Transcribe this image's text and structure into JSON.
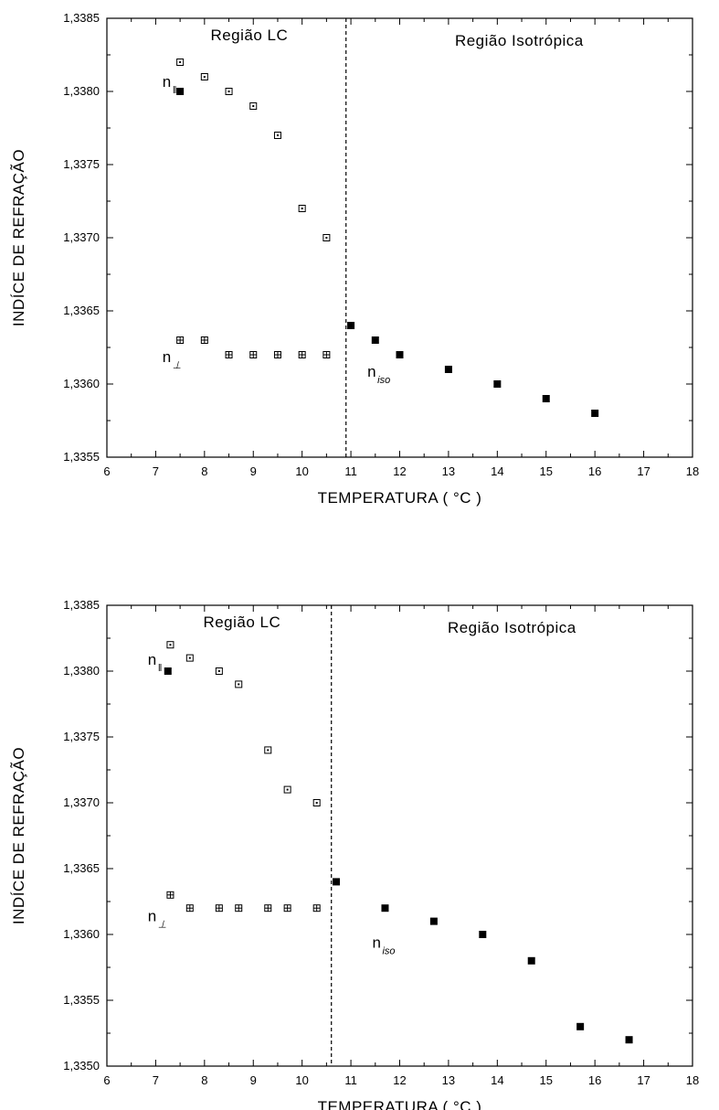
{
  "chart_data": [
    {
      "type": "scatter",
      "xlabel": "TEMPERATURA ( °C )",
      "ylabel": "INDÍCE DE REFRAÇÃO",
      "xlim": [
        6,
        18
      ],
      "ylim": [
        1.3355,
        1.3385
      ],
      "xticks": [
        "6",
        "7",
        "8",
        "9",
        "10",
        "11",
        "12",
        "13",
        "14",
        "15",
        "16",
        "17",
        "18"
      ],
      "yticks": [
        "1,3355",
        "1,3360",
        "1,3365",
        "1,3370",
        "1,3375",
        "1,3380",
        "1,3385"
      ],
      "transition_x": 10.9,
      "regions": {
        "lc": "Região LC",
        "iso": "Região Isotrópica"
      },
      "annotations": [
        {
          "text": "n",
          "sub": "‖",
          "x": 7.4,
          "y": 1.33803
        },
        {
          "text": "n",
          "sub": "⊥",
          "x": 7.4,
          "y": 1.33615
        },
        {
          "text": "n",
          "sub": "iso",
          "x": 11.6,
          "y": 1.33605
        }
      ],
      "series": [
        {
          "marker": "open-square",
          "x": [
            7.5,
            8.0,
            8.5,
            9.0,
            9.5,
            10.0,
            10.5
          ],
          "y": [
            1.3382,
            1.3381,
            1.338,
            1.3379,
            1.3377,
            1.3372,
            1.337
          ]
        },
        {
          "marker": "crossed-square",
          "x": [
            7.5,
            8.0,
            8.5,
            9.0,
            9.5,
            10.0,
            10.5
          ],
          "y": [
            1.3363,
            1.3363,
            1.3362,
            1.3362,
            1.3362,
            1.3362,
            1.3362
          ]
        },
        {
          "marker": "filled-square",
          "x": [
            7.5,
            11.0,
            11.5,
            12.0,
            13.0,
            14.0,
            15.0,
            16.0
          ],
          "y": [
            1.338,
            1.3364,
            1.3363,
            1.3362,
            1.3361,
            1.336,
            1.3359,
            1.3358
          ]
        }
      ]
    },
    {
      "type": "scatter",
      "xlabel": "TEMPERATURA ( °C )",
      "ylabel": "INDÍCE DE REFRAÇÃO",
      "xlim": [
        6,
        18
      ],
      "ylim": [
        1.335,
        1.3385
      ],
      "xticks": [
        "6",
        "7",
        "8",
        "9",
        "10",
        "11",
        "12",
        "13",
        "14",
        "15",
        "16",
        "17",
        "18"
      ],
      "yticks": [
        "1,3350",
        "1,3355",
        "1,3360",
        "1,3365",
        "1,3370",
        "1,3375",
        "1,3380",
        "1,3385"
      ],
      "transition_x": 10.6,
      "regions": {
        "lc": "Região LC",
        "iso": "Região Isotrópica"
      },
      "annotations": [
        {
          "text": "n",
          "sub": "‖",
          "x": 7.1,
          "y": 1.33805
        },
        {
          "text": "n",
          "sub": "⊥",
          "x": 7.1,
          "y": 1.3361
        },
        {
          "text": "n",
          "sub": "iso",
          "x": 11.7,
          "y": 1.3359
        }
      ],
      "series": [
        {
          "marker": "open-square",
          "x": [
            7.3,
            7.7,
            8.3,
            8.7,
            9.3,
            9.7,
            10.3
          ],
          "y": [
            1.3382,
            1.3381,
            1.338,
            1.3379,
            1.3374,
            1.3371,
            1.337
          ]
        },
        {
          "marker": "crossed-square",
          "x": [
            7.3,
            7.7,
            8.3,
            8.7,
            9.3,
            9.7,
            10.3
          ],
          "y": [
            1.3363,
            1.3362,
            1.3362,
            1.3362,
            1.3362,
            1.3362,
            1.3362
          ]
        },
        {
          "marker": "filled-square",
          "x": [
            7.25,
            10.7,
            11.7,
            12.7,
            13.7,
            14.7,
            15.7,
            16.7
          ],
          "y": [
            1.338,
            1.3364,
            1.3362,
            1.3361,
            1.336,
            1.3358,
            1.3353,
            1.3352
          ]
        }
      ]
    }
  ]
}
